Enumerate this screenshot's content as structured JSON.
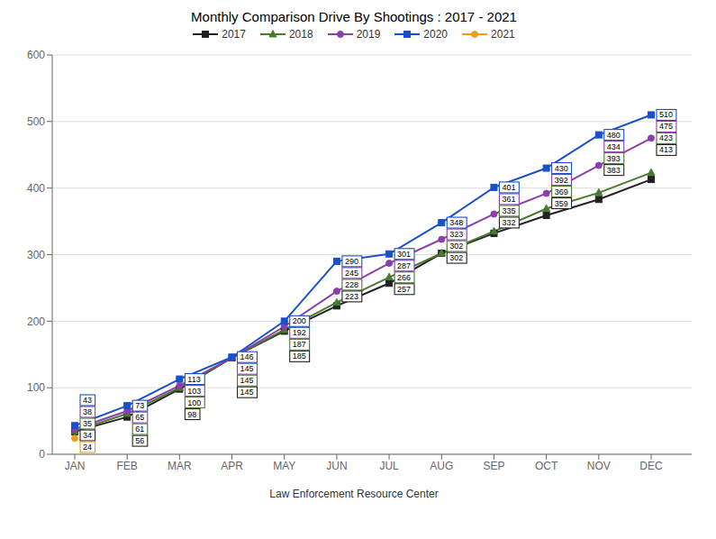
{
  "chart_data": {
    "type": "line",
    "title": "Monthly Comparison Drive By Shootings : 2017 - 2021",
    "subtitle": "Law Enforcement Resource Center",
    "categories": [
      "JAN",
      "FEB",
      "MAR",
      "APR",
      "MAY",
      "JUN",
      "JUL",
      "AUG",
      "SEP",
      "OCT",
      "NOV",
      "DEC"
    ],
    "series": [
      {
        "name": "2017",
        "color": "#222222",
        "marker": "square",
        "values": [
          34,
          56,
          98,
          145,
          185,
          223,
          257,
          302,
          332,
          359,
          383,
          413
        ]
      },
      {
        "name": "2018",
        "color": "#4a7a2f",
        "marker": "triangle",
        "values": [
          35,
          61,
          100,
          145,
          187,
          228,
          266,
          302,
          335,
          369,
          393,
          423
        ]
      },
      {
        "name": "2019",
        "color": "#8b3faa",
        "marker": "circle",
        "values": [
          38,
          65,
          103,
          145,
          192,
          245,
          287,
          323,
          361,
          392,
          434,
          475
        ]
      },
      {
        "name": "2020",
        "color": "#1a4fcc",
        "marker": "square",
        "values": [
          43,
          73,
          113,
          146,
          200,
          290,
          301,
          348,
          401,
          430,
          480,
          510
        ]
      },
      {
        "name": "2021",
        "color": "#e8a020",
        "marker": "circle",
        "values": [
          24,
          null,
          null,
          null,
          null,
          null,
          null,
          null,
          null,
          null,
          null,
          null
        ]
      }
    ],
    "ylim": [
      0,
      600
    ],
    "yticks": [
      0,
      100,
      200,
      300,
      400,
      500,
      600
    ],
    "grid": true,
    "legend": "top",
    "data_labels": true
  }
}
